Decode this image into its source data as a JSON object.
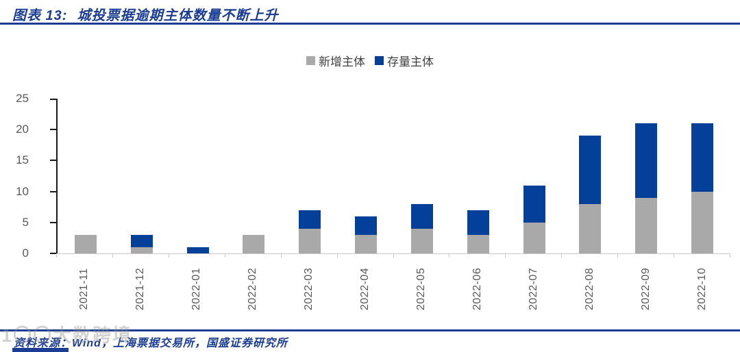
{
  "header": {
    "title_label": "图表 13:",
    "title_text": "城投票据逾期主体数量不断上升"
  },
  "footer": {
    "source": "资料来源：Wind，上海票据交易所，国盛证券研究所"
  },
  "watermark": {
    "text": "1〇〇大数跨境"
  },
  "colors": {
    "accent_blue": "#1b3e94",
    "bar_gray": "#a9a9a9",
    "bar_blue": "#04409a",
    "axis_text": "#595959"
  },
  "chart_data": {
    "type": "bar",
    "stacked": true,
    "title": "城投票据逾期主体数量不断上升",
    "categories": [
      "2021-11",
      "2021-12",
      "2022-01",
      "2022-02",
      "2022-03",
      "2022-04",
      "2022-05",
      "2022-06",
      "2022-07",
      "2022-08",
      "2022-09",
      "2022-10"
    ],
    "series": [
      {
        "name": "新增主体",
        "color": "#a9a9a9",
        "values": [
          3,
          1,
          0,
          3,
          4,
          3,
          4,
          3,
          5,
          8,
          9,
          10
        ]
      },
      {
        "name": "存量主体",
        "color": "#04409a",
        "values": [
          0,
          2,
          1,
          0,
          3,
          3,
          4,
          4,
          6,
          11,
          12,
          11
        ]
      }
    ],
    "totals": [
      3,
      3,
      1,
      3,
      7,
      6,
      8,
      7,
      11,
      19,
      21,
      21
    ],
    "xlabel": "",
    "ylabel": "",
    "ylim": [
      0,
      25
    ],
    "yticks": [
      0,
      5,
      10,
      15,
      20,
      25
    ],
    "grid": false,
    "legend_position": "top-center"
  }
}
